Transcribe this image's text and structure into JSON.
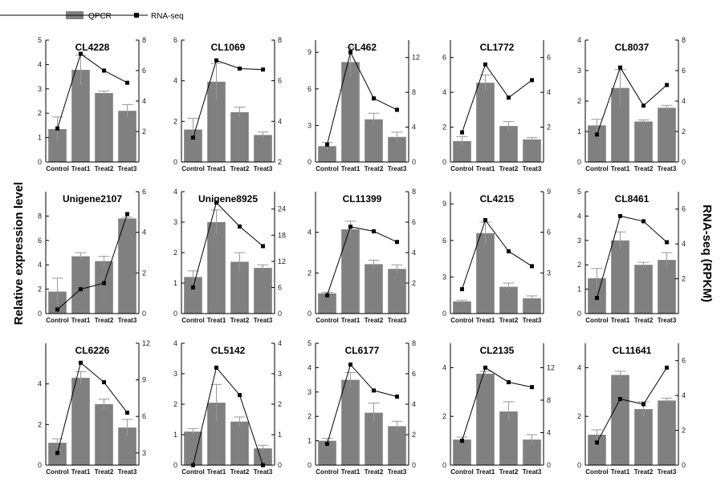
{
  "legend": {
    "bar_label": "QPCR",
    "line_label": "RNA-seq"
  },
  "ylabel_left": "Relative expression level",
  "ylabel_right": "RNA-seq (RPKM)",
  "colors": {
    "bar": "#808080",
    "line": "#000000"
  },
  "chart_data": [
    {
      "type": "bar",
      "title": "CL4228",
      "categories": [
        "Control",
        "Treat1",
        "Treat2",
        "Treat3"
      ],
      "qpcr": [
        1.35,
        3.78,
        2.83,
        2.1
      ],
      "qpcr_err": [
        0.5,
        0.6,
        0.08,
        0.25
      ],
      "rnaseq": [
        2.2,
        7.1,
        6.0,
        5.2
      ],
      "ylim_left": [
        0,
        5
      ],
      "yticks_left": [
        0,
        1,
        2,
        3,
        4,
        5
      ],
      "ylim_right": [
        0,
        8
      ],
      "yticks_right": [
        2,
        4,
        6,
        8
      ]
    },
    {
      "type": "bar",
      "title": "CL1069",
      "categories": [
        "Control",
        "Treat1",
        "Treat2",
        "Treat3"
      ],
      "qpcr": [
        1.6,
        3.95,
        2.45,
        1.33
      ],
      "qpcr_err": [
        0.55,
        0.9,
        0.25,
        0.15
      ],
      "rnaseq": [
        3.2,
        7.0,
        6.6,
        6.55
      ],
      "ylim_left": [
        0,
        6
      ],
      "yticks_left": [
        0,
        2,
        4,
        6
      ],
      "ylim_right": [
        2,
        8
      ],
      "yticks_right": [
        2,
        4,
        6,
        8
      ]
    },
    {
      "type": "bar",
      "title": "CL462",
      "categories": [
        "Control",
        "Treat1",
        "Treat2",
        "Treat3"
      ],
      "qpcr": [
        1.3,
        8.2,
        3.5,
        2.05
      ],
      "qpcr_err": [
        0.3,
        1.2,
        0.5,
        0.4
      ],
      "rnaseq": [
        2.0,
        12.6,
        7.3,
        6.0
      ],
      "ylim_left": [
        0,
        10
      ],
      "yticks_left": [
        0,
        3,
        6,
        9
      ],
      "ylim_right": [
        0,
        14
      ],
      "yticks_right": [
        0,
        4,
        8,
        12
      ],
      "right_tick_labels": [
        "0",
        "4",
        "8",
        "12"
      ]
    },
    {
      "type": "bar",
      "title": "CL1772",
      "categories": [
        "Control",
        "Treat1",
        "Treat2",
        "Treat3"
      ],
      "qpcr": [
        1.2,
        4.55,
        2.07,
        1.3
      ],
      "qpcr_err": [
        0.25,
        0.45,
        0.25,
        0.1
      ],
      "rnaseq": [
        1.7,
        5.6,
        3.7,
        4.7
      ],
      "ylim_left": [
        0,
        7
      ],
      "yticks_left": [
        0,
        2,
        4,
        6
      ],
      "ylim_right": [
        0,
        7
      ],
      "yticks_right": [
        2,
        4,
        6
      ]
    },
    {
      "type": "bar",
      "title": "CL8037",
      "categories": [
        "Control",
        "Treat1",
        "Treat2",
        "Treat3"
      ],
      "qpcr": [
        1.2,
        2.43,
        1.33,
        1.78
      ],
      "qpcr_err": [
        0.2,
        0.6,
        0.05,
        0.08
      ],
      "rnaseq": [
        1.8,
        6.2,
        3.7,
        5.05
      ],
      "ylim_left": [
        0,
        4
      ],
      "yticks_left": [
        0,
        1,
        2,
        3,
        4
      ],
      "ylim_right": [
        0,
        8
      ],
      "yticks_right": [
        0,
        2,
        4,
        6,
        8
      ]
    },
    {
      "type": "bar",
      "title": "Unigene2107",
      "categories": [
        "Control",
        "Treat1",
        "Treat2",
        "Treat3"
      ],
      "qpcr": [
        1.8,
        4.7,
        4.3,
        7.8
      ],
      "qpcr_err": [
        1.1,
        0.3,
        0.4,
        0.1
      ],
      "rnaseq": [
        0.2,
        1.2,
        1.5,
        4.9
      ],
      "ylim_left": [
        0,
        10
      ],
      "yticks_left": [
        0,
        2,
        4,
        6,
        8
      ],
      "ylim_right": [
        0,
        6
      ],
      "yticks_right": [
        0,
        2,
        4,
        6
      ]
    },
    {
      "type": "bar",
      "title": "Unigene8925",
      "categories": [
        "Control",
        "Treat1",
        "Treat2",
        "Treat3"
      ],
      "qpcr": [
        1.2,
        3.0,
        1.7,
        1.5
      ],
      "qpcr_err": [
        0.2,
        0.4,
        0.3,
        0.1
      ],
      "rnaseq": [
        6.0,
        25.5,
        20.0,
        15.5
      ],
      "ylim_left": [
        0,
        4
      ],
      "yticks_left": [
        0,
        1,
        2,
        3,
        4
      ],
      "ylim_right": [
        0,
        28
      ],
      "yticks_right": [
        0,
        6,
        12,
        18,
        24
      ]
    },
    {
      "type": "bar",
      "title": "CL11399",
      "categories": [
        "Control",
        "Treat1",
        "Treat2",
        "Treat3"
      ],
      "qpcr": [
        1.0,
        4.15,
        2.43,
        2.2
      ],
      "qpcr_err": [
        0.05,
        0.4,
        0.2,
        0.2
      ],
      "rnaseq": [
        1.2,
        5.7,
        5.4,
        4.7
      ],
      "ylim_left": [
        0,
        6
      ],
      "yticks_left": [
        0,
        2,
        4
      ],
      "ylim_right": [
        0,
        8
      ],
      "yticks_right": [
        2,
        4,
        6,
        8
      ]
    },
    {
      "type": "bar",
      "title": "CL4215",
      "categories": [
        "Control",
        "Treat1",
        "Treat2",
        "Treat3"
      ],
      "qpcr": [
        1.0,
        6.6,
        2.2,
        1.25
      ],
      "qpcr_err": [
        0.1,
        0.9,
        0.3,
        0.2
      ],
      "rnaseq": [
        1.8,
        6.9,
        4.6,
        3.5
      ],
      "ylim_left": [
        0,
        10
      ],
      "yticks_left": [
        0,
        3,
        6,
        9
      ],
      "ylim_right": [
        0,
        9
      ],
      "yticks_right": [
        3,
        6,
        9
      ]
    },
    {
      "type": "bar",
      "title": "CL8461",
      "categories": [
        "Control",
        "Treat1",
        "Treat2",
        "Treat3"
      ],
      "qpcr": [
        1.45,
        3.0,
        2.0,
        2.2
      ],
      "qpcr_err": [
        0.4,
        0.35,
        0.1,
        0.3
      ],
      "rnaseq": [
        0.9,
        5.6,
        5.3,
        4.1
      ],
      "ylim_left": [
        0,
        5
      ],
      "yticks_left": [
        0,
        1,
        2,
        3,
        4,
        5
      ],
      "ylim_right": [
        0,
        7
      ],
      "yticks_right": [
        2,
        4,
        6
      ]
    },
    {
      "type": "bar",
      "title": "CL6226",
      "categories": [
        "Control",
        "Treat1",
        "Treat2",
        "Treat3"
      ],
      "qpcr": [
        1.1,
        4.3,
        3.0,
        1.85
      ],
      "qpcr_err": [
        0.2,
        0.3,
        0.25,
        0.4
      ],
      "rnaseq": [
        3.0,
        10.4,
        8.8,
        6.3
      ],
      "ylim_left": [
        0,
        6
      ],
      "yticks_left": [
        0,
        2,
        4
      ],
      "ylim_right": [
        2,
        12
      ],
      "yticks_right": [
        3,
        6,
        9,
        12
      ]
    },
    {
      "type": "bar",
      "title": "CL5142",
      "categories": [
        "Control",
        "Treat1",
        "Treat2",
        "Treat3"
      ],
      "qpcr": [
        1.1,
        2.05,
        1.43,
        0.55
      ],
      "qpcr_err": [
        0.1,
        0.6,
        0.15,
        0.1
      ],
      "rnaseq": [
        0.0,
        3.2,
        2.3,
        0.0
      ],
      "ylim_left": [
        0,
        4
      ],
      "yticks_left": [
        0,
        1,
        2,
        3,
        4
      ],
      "ylim_right": [
        0,
        4
      ],
      "yticks_right": [
        0,
        1,
        2,
        3,
        4
      ]
    },
    {
      "type": "bar",
      "title": "CL6177",
      "categories": [
        "Control",
        "Treat1",
        "Treat2",
        "Treat3"
      ],
      "qpcr": [
        1.0,
        3.5,
        2.15,
        1.6
      ],
      "qpcr_err": [
        0.1,
        0.3,
        0.4,
        0.2
      ],
      "rnaseq": [
        1.4,
        6.6,
        4.9,
        4.5
      ],
      "ylim_left": [
        0,
        5
      ],
      "yticks_left": [
        0,
        1,
        2,
        3,
        4,
        5
      ],
      "ylim_right": [
        0,
        8
      ],
      "yticks_right": [
        0,
        2,
        4,
        6,
        8
      ]
    },
    {
      "type": "bar",
      "title": "CL2135",
      "categories": [
        "Control",
        "Treat1",
        "Treat2",
        "Treat3"
      ],
      "qpcr": [
        1.05,
        3.75,
        2.2,
        1.05
      ],
      "qpcr_err": [
        0.1,
        0.1,
        0.4,
        0.2
      ],
      "rnaseq": [
        3.0,
        12.0,
        10.2,
        9.6
      ],
      "ylim_left": [
        0,
        5
      ],
      "yticks_left": [
        0,
        2,
        4
      ],
      "ylim_right": [
        0,
        15
      ],
      "yticks_right": [
        0,
        4,
        8,
        12
      ]
    },
    {
      "type": "bar",
      "title": "CL11641",
      "categories": [
        "Control",
        "Treat1",
        "Treat2",
        "Treat3"
      ],
      "qpcr": [
        1.25,
        3.7,
        2.3,
        2.65
      ],
      "qpcr_err": [
        0.2,
        0.15,
        0.3,
        0.1
      ],
      "rnaseq": [
        1.3,
        3.8,
        3.5,
        5.6
      ],
      "ylim_left": [
        0,
        5
      ],
      "yticks_left": [
        0,
        2,
        4
      ],
      "ylim_right": [
        0,
        7
      ],
      "yticks_right": [
        0,
        2,
        4,
        6
      ]
    }
  ]
}
